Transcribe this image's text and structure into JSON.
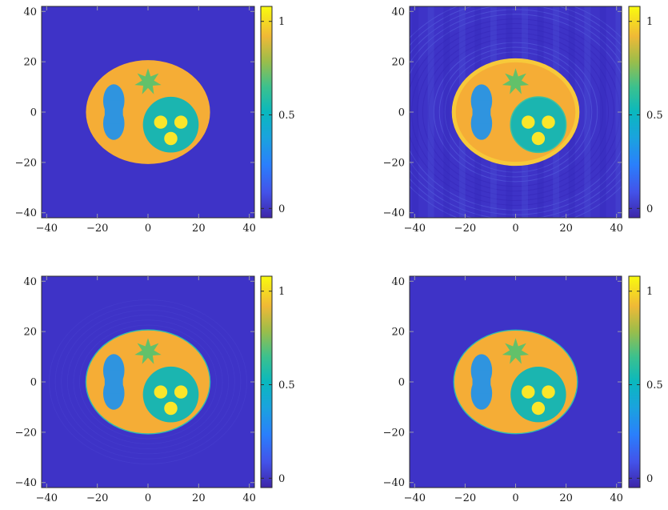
{
  "chart_data": [
    {
      "type": "heatmap",
      "title": "",
      "xlabel": "",
      "ylabel": "",
      "xlim": [
        -42,
        42
      ],
      "ylim": [
        -42,
        42
      ],
      "x_ticks": [
        -40,
        -20,
        0,
        20,
        40
      ],
      "y_ticks": [
        -40,
        -20,
        0,
        20,
        40
      ],
      "colorbar": {
        "range": [
          -0.05,
          1.08
        ],
        "ticks": [
          0,
          0.5,
          1
        ]
      },
      "image": "phantom"
    },
    {
      "type": "heatmap",
      "title": "",
      "xlabel": "",
      "ylabel": "",
      "xlim": [
        -42,
        42
      ],
      "ylim": [
        -42,
        42
      ],
      "x_ticks": [
        -40,
        -20,
        0,
        20,
        40
      ],
      "y_ticks": [
        -40,
        -20,
        0,
        20,
        40
      ],
      "colorbar": {
        "range": [
          -0.05,
          1.08
        ],
        "ticks": [
          0,
          0.5,
          1
        ]
      },
      "image": "reconstruction with ringing artifacts"
    },
    {
      "type": "heatmap",
      "title": "",
      "xlabel": "",
      "ylabel": "",
      "xlim": [
        -42,
        42
      ],
      "ylim": [
        -42,
        42
      ],
      "x_ticks": [
        -40,
        -20,
        0,
        20,
        40
      ],
      "y_ticks": [
        -40,
        -20,
        0,
        20,
        40
      ],
      "colorbar": {
        "range": [
          -0.05,
          1.08
        ],
        "ticks": [
          0,
          0.5,
          1
        ]
      },
      "image": "reconstruction with faint ringing"
    },
    {
      "type": "heatmap",
      "title": "",
      "xlabel": "",
      "ylabel": "",
      "xlim": [
        -42,
        42
      ],
      "ylim": [
        -42,
        42
      ],
      "x_ticks": [
        -40,
        -20,
        0,
        20,
        40
      ],
      "y_ticks": [
        -40,
        -20,
        0,
        20,
        40
      ],
      "colorbar": {
        "range": [
          -0.05,
          1.08
        ],
        "ticks": [
          0,
          0.5,
          1
        ]
      },
      "image": "clean reconstruction"
    }
  ],
  "colors": {
    "background": "#3e33c7",
    "ellipse": "#f5ad36",
    "ellipse_bright": "#f7c93a",
    "star": "#62c16a",
    "left_blob": "#2f94df",
    "right_circle": "#1bb5b0",
    "dots": "#fbe62a",
    "edge": "#2ebcb0",
    "ring": "#5a62e0"
  }
}
